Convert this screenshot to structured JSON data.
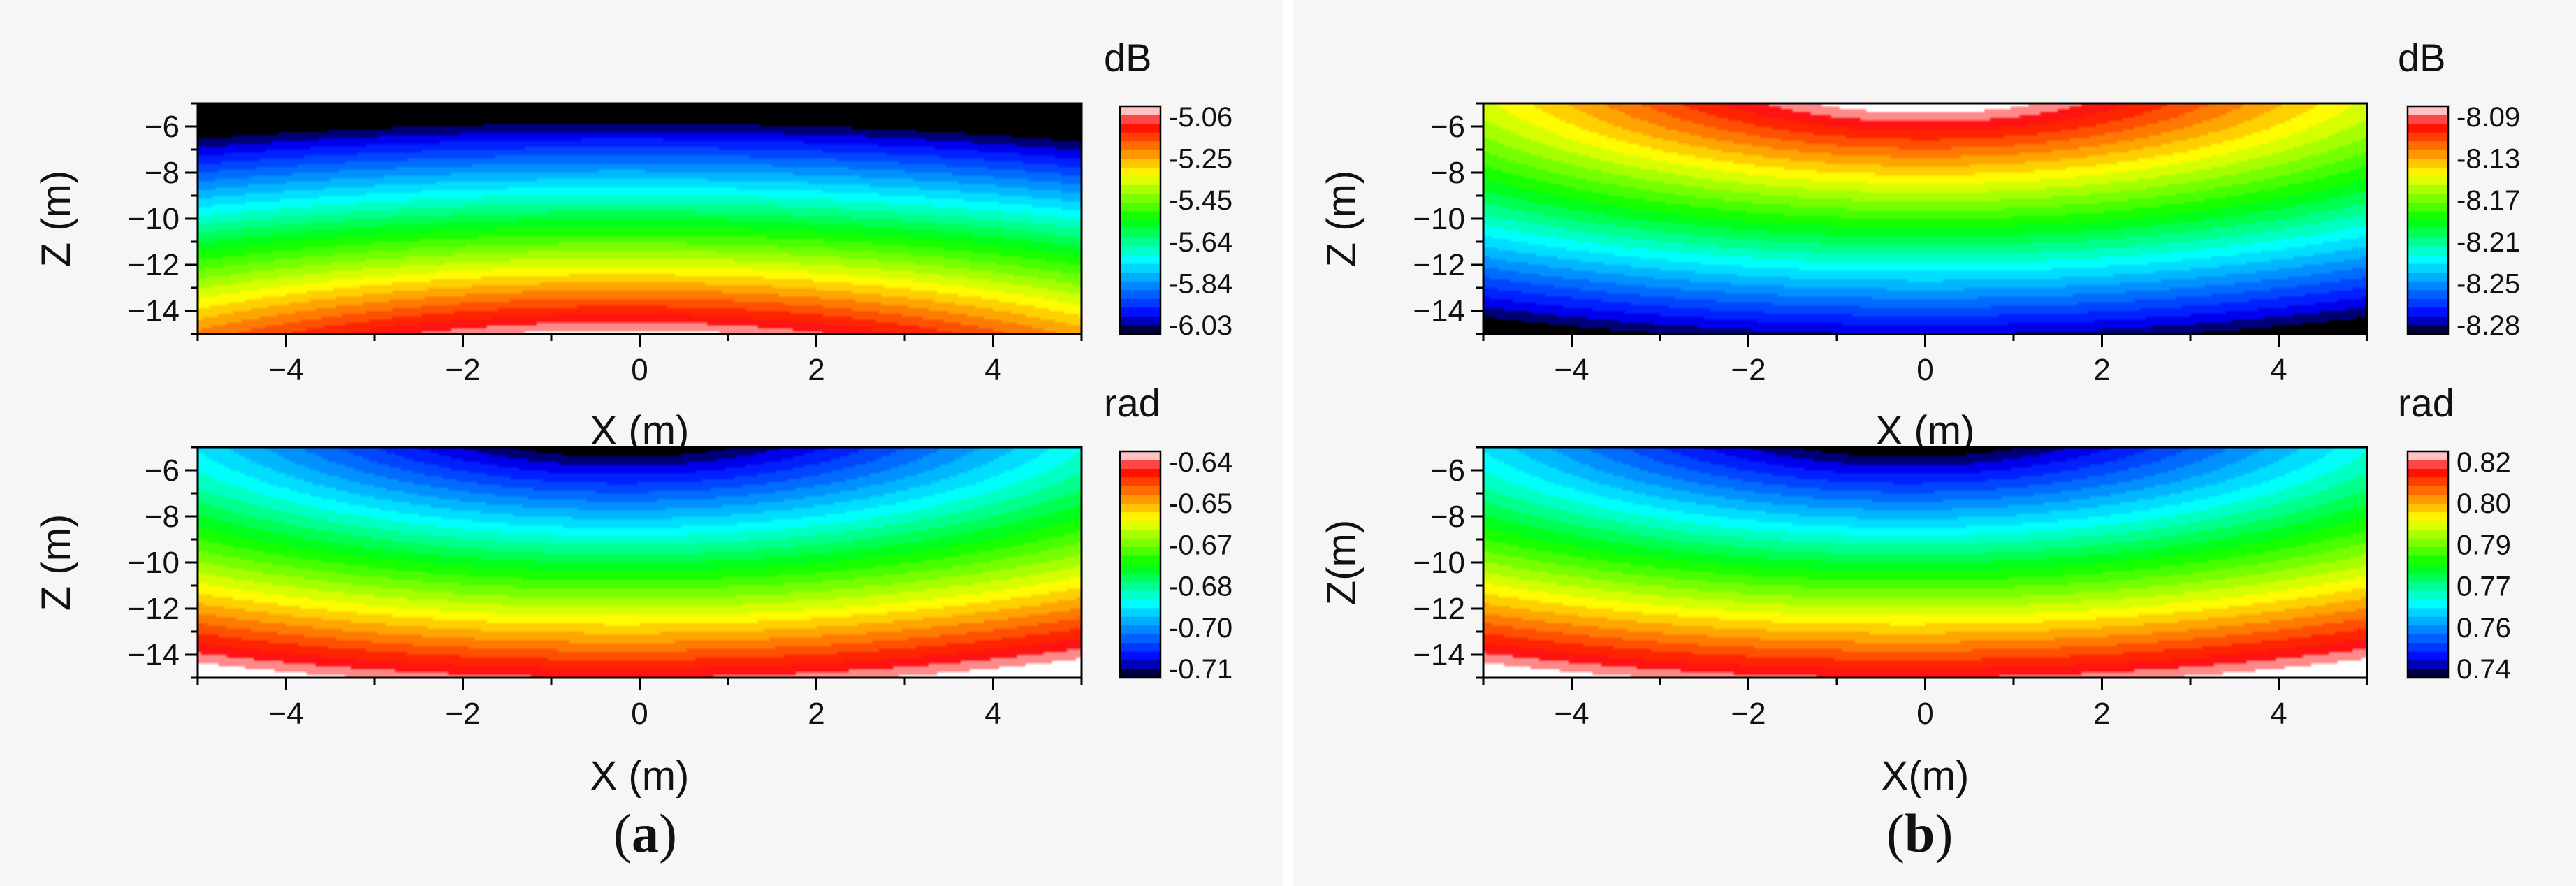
{
  "captions": [
    {
      "open": "(",
      "letter": "a",
      "close": ")"
    },
    {
      "open": "(",
      "letter": "b",
      "close": ")"
    }
  ],
  "colormap": [
    "#000000",
    "#0000ff",
    "#00ffff",
    "#00ff00",
    "#ffff00",
    "#ff0000",
    "#ffffff"
  ],
  "chart_data": [
    {
      "type": "heatmap",
      "panel": "a",
      "xlabel": "X (m)",
      "ylabel": "Z (m)",
      "xlim": [
        -5,
        5
      ],
      "ylim": [
        -15,
        -5
      ],
      "xticks": [
        -4,
        -2,
        0,
        2,
        4
      ],
      "yticks": [
        -6,
        -8,
        -10,
        -12,
        -14
      ],
      "xtick_labels": [
        "−4",
        "−2",
        "0",
        "2",
        "4"
      ],
      "ytick_labels": [
        "−6",
        "−8",
        "−10",
        "−12",
        "−14"
      ],
      "colorbar": {
        "unit": "dB",
        "ticks": [
          "-5.06",
          "-5.25",
          "-5.45",
          "-5.64",
          "-5.84",
          "-6.03"
        ],
        "range": [
          -6.03,
          -5.06
        ]
      },
      "field": {
        "shape": "bowl-from-bottom",
        "peak_x": -0.2,
        "max_at": "bottom-center",
        "min_at": "top-corners"
      }
    },
    {
      "type": "heatmap",
      "panel": "a",
      "xlabel": "X (m)",
      "ylabel": "Z (m)",
      "xlim": [
        -5,
        5
      ],
      "ylim": [
        -15,
        -5
      ],
      "xticks": [
        -4,
        -2,
        0,
        2,
        4
      ],
      "yticks": [
        -6,
        -8,
        -10,
        -12,
        -14
      ],
      "xtick_labels": [
        "−4",
        "−2",
        "0",
        "2",
        "4"
      ],
      "ytick_labels": [
        "−6",
        "−8",
        "−10",
        "−12",
        "−14"
      ],
      "colorbar": {
        "unit": "rad",
        "ticks": [
          "-0.64",
          "-0.65",
          "-0.67",
          "-0.68",
          "-0.70",
          "-0.71"
        ],
        "range": [
          -0.71,
          -0.64
        ]
      },
      "field": {
        "shape": "rings-from-top",
        "peak_x": -0.2,
        "min_at": "top-center",
        "max_at": "bottom-corners"
      }
    },
    {
      "type": "heatmap",
      "panel": "b",
      "xlabel": "X (m)",
      "ylabel": "Z (m)",
      "xlim": [
        -5,
        5
      ],
      "ylim": [
        -15,
        -5
      ],
      "xticks": [
        -4,
        -2,
        0,
        2,
        4
      ],
      "yticks": [
        -6,
        -8,
        -10,
        -12,
        -14
      ],
      "xtick_labels": [
        "−4",
        "−2",
        "0",
        "2",
        "4"
      ],
      "ytick_labels": [
        "−6",
        "−8",
        "−10",
        "−12",
        "−14"
      ],
      "colorbar": {
        "unit": "dB",
        "ticks": [
          "-8.09",
          "-8.13",
          "-8.17",
          "-8.21",
          "-8.25",
          "-8.28"
        ],
        "range": [
          -8.28,
          -8.09
        ]
      },
      "field": {
        "shape": "rings-from-top",
        "peak_x": 0.0,
        "max_at": "top-center",
        "min_at": "bottom-corners"
      }
    },
    {
      "type": "heatmap",
      "panel": "b",
      "xlabel": "X(m)",
      "ylabel": "Z(m)",
      "xlim": [
        -5,
        5
      ],
      "ylim": [
        -15,
        -5
      ],
      "xticks": [
        -4,
        -2,
        0,
        2,
        4
      ],
      "yticks": [
        -6,
        -8,
        -10,
        -12,
        -14
      ],
      "xtick_labels": [
        "−4",
        "−2",
        "0",
        "2",
        "4"
      ],
      "ytick_labels": [
        "−6",
        "−8",
        "−10",
        "−12",
        "−14"
      ],
      "colorbar": {
        "unit": "rad",
        "ticks": [
          "0.82",
          "0.80",
          "0.79",
          "0.77",
          "0.76",
          "0.74"
        ],
        "range": [
          0.74,
          0.82
        ]
      },
      "field": {
        "shape": "rings-from-top",
        "peak_x": -0.2,
        "min_at": "top-center",
        "max_at": "bottom-corners"
      }
    }
  ]
}
